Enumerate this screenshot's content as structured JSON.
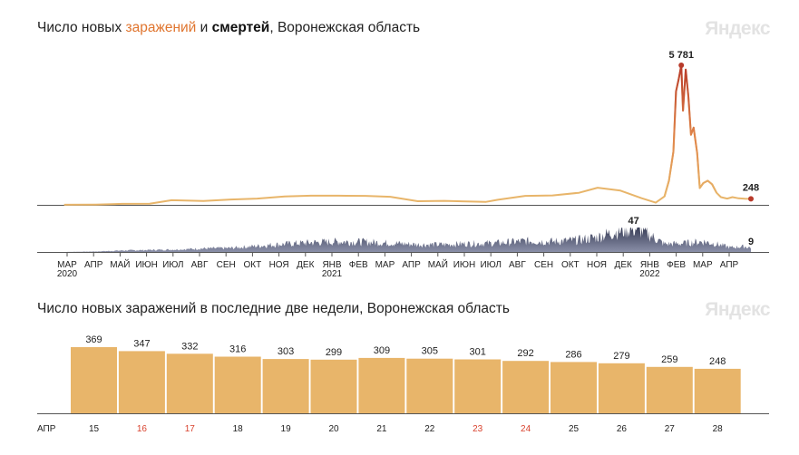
{
  "logo_text": "Яндекс",
  "title1": {
    "prefix": "Число новых ",
    "cases_word": "заражений",
    "middle": " и ",
    "deaths_word": "смертей",
    "suffix": ", Воронежская область"
  },
  "title2": "Число новых заражений в последние две недели, Воронежская область",
  "colors": {
    "cases_line": "#e8b56a",
    "cases_peak": "#b83a2a",
    "deaths_area": "#5a5f7a",
    "bars": "#e8b56a",
    "weekend": "#d9432f",
    "axis": "#222222"
  },
  "chart_data": [
    {
      "type": "line",
      "series": [
        {
          "name": "заражений",
          "x": [
            "2020-03-10",
            "2020-04-15",
            "2020-05-15",
            "2020-06-15",
            "2020-07-10",
            "2020-08-15",
            "2020-09-15",
            "2020-10-15",
            "2020-11-15",
            "2020-12-15",
            "2021-01-15",
            "2021-02-15",
            "2021-03-15",
            "2021-04-15",
            "2021-05-15",
            "2021-06-15",
            "2021-07-01",
            "2021-07-15",
            "2021-08-15",
            "2021-09-15",
            "2021-10-15",
            "2021-11-05",
            "2021-12-01",
            "2021-12-25",
            "2022-01-10",
            "2022-01-20",
            "2022-01-25",
            "2022-01-30",
            "2022-02-02",
            "2022-02-05",
            "2022-02-08",
            "2022-02-10",
            "2022-02-13",
            "2022-02-16",
            "2022-02-19",
            "2022-02-22",
            "2022-02-26",
            "2022-03-01",
            "2022-03-05",
            "2022-03-10",
            "2022-03-15",
            "2022-03-20",
            "2022-03-25",
            "2022-04-01",
            "2022-04-07",
            "2022-04-14",
            "2022-04-21",
            "2022-04-28"
          ],
          "values": [
            2,
            10,
            40,
            50,
            190,
            160,
            220,
            260,
            345,
            380,
            380,
            370,
            335,
            150,
            165,
            135,
            120,
            210,
            370,
            390,
            500,
            710,
            590,
            275,
            90,
            350,
            1000,
            2200,
            4700,
            5200,
            5781,
            3900,
            5600,
            4500,
            2900,
            3200,
            2150,
            700,
            900,
            1000,
            850,
            500,
            320,
            260,
            320,
            270,
            255,
            248
          ]
        },
        {
          "name": "смертей",
          "x": [
            "2020-03-10",
            "2020-04-15",
            "2020-05-15",
            "2020-06-15",
            "2020-07-15",
            "2020-08-15",
            "2020-09-15",
            "2020-10-15",
            "2020-11-15",
            "2020-12-15",
            "2021-01-15",
            "2021-02-15",
            "2021-03-15",
            "2021-04-15",
            "2021-05-15",
            "2021-06-15",
            "2021-07-15",
            "2021-08-15",
            "2021-09-15",
            "2021-10-15",
            "2021-11-05",
            "2021-11-20",
            "2021-12-05",
            "2021-12-20",
            "2022-01-05",
            "2022-01-20",
            "2022-02-05",
            "2022-02-20",
            "2022-03-05",
            "2022-03-20",
            "2022-04-05",
            "2022-04-20",
            "2022-04-28"
          ],
          "values": [
            0,
            1,
            3,
            4,
            5,
            7,
            8,
            12,
            16,
            19,
            21,
            20,
            18,
            15,
            15,
            17,
            18,
            22,
            21,
            24,
            30,
            38,
            44,
            47,
            32,
            16,
            17,
            19,
            21,
            16,
            9,
            11,
            9
          ]
        }
      ],
      "x_ticks": [
        "МАР",
        "АПР",
        "МАЙ",
        "ИЮН",
        "ИЮЛ",
        "АВГ",
        "СЕН",
        "ОКТ",
        "НОЯ",
        "ДЕК",
        "ЯНВ",
        "ФЕВ",
        "МАР",
        "АПР",
        "МАЙ",
        "ИЮН",
        "ИЮЛ",
        "АВГ",
        "СЕН",
        "ОКТ",
        "НОЯ",
        "ДЕК",
        "ЯНВ",
        "ФЕВ",
        "МАР",
        "АПР"
      ],
      "year_labels": [
        {
          "month_index": 0,
          "label": "2020"
        },
        {
          "month_index": 10,
          "label": "2021"
        },
        {
          "month_index": 22,
          "label": "2022"
        }
      ],
      "annotations": {
        "cases_peak": "5 781",
        "cases_last": "248",
        "deaths_peak": "47",
        "deaths_last": "9"
      },
      "x_range": [
        "2020-03-01",
        "2022-04-28"
      ],
      "cases_ylim": [
        0,
        5781
      ],
      "deaths_ylim": [
        0,
        47
      ]
    },
    {
      "type": "bar",
      "month_label": "АПР",
      "categories": [
        "15",
        "16",
        "17",
        "18",
        "19",
        "20",
        "21",
        "22",
        "23",
        "24",
        "25",
        "26",
        "27",
        "28"
      ],
      "values": [
        369,
        347,
        332,
        316,
        303,
        299,
        309,
        305,
        301,
        292,
        286,
        279,
        259,
        248
      ],
      "weekend": [
        false,
        true,
        true,
        false,
        false,
        false,
        false,
        false,
        true,
        true,
        false,
        false,
        false,
        false
      ]
    }
  ]
}
